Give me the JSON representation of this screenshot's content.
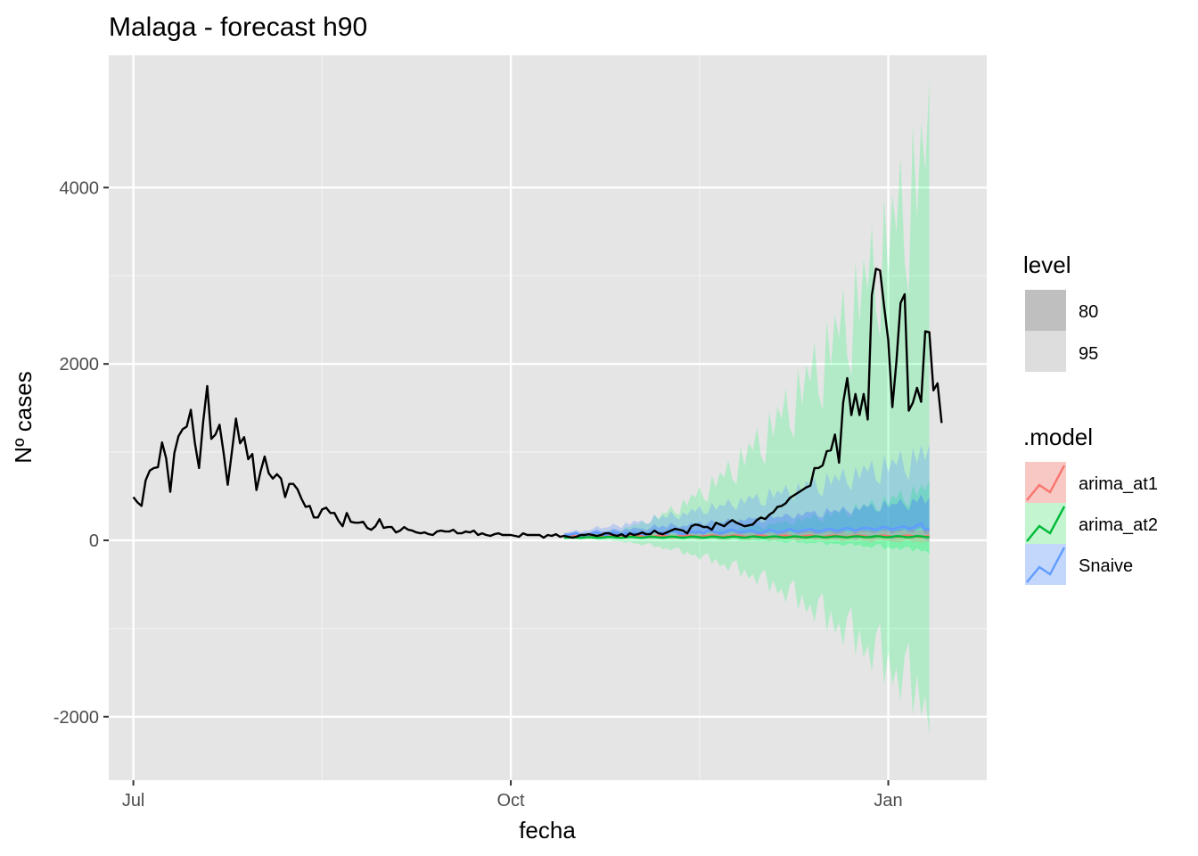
{
  "chart_data": {
    "type": "line",
    "title": "Malaga - forecast h90",
    "xlabel": "fecha",
    "ylabel": "Nº cases",
    "x_ticks": [
      "Jul",
      "Oct",
      "Jan"
    ],
    "x_tick_dates": [
      "2020-07-01",
      "2020-10-01",
      "2021-01-01"
    ],
    "x_range": [
      "2020-06-25",
      "2021-01-25"
    ],
    "y_ticks": [
      -2000,
      0,
      2000,
      4000
    ],
    "ylim": [
      -2720,
      5500
    ],
    "grid": true,
    "legend_position": "right",
    "legend": {
      "level": {
        "title": "level",
        "items": [
          "80",
          "95"
        ]
      },
      "model": {
        "title": ".model",
        "items": [
          "arima_at1",
          "arima_at2",
          "Snaive"
        ]
      }
    },
    "colors": {
      "panel": "#e5e5e5",
      "actual": "#000000",
      "arima_at1": "#f8766d",
      "arima_at2": "#00ba38",
      "Snaive": "#619cff"
    },
    "actual": {
      "start_date": "2020-07-01",
      "values": [
        490,
        430,
        390,
        680,
        790,
        820,
        830,
        1110,
        930,
        550,
        990,
        1180,
        1260,
        1290,
        1480,
        1100,
        820,
        1340,
        1750,
        1150,
        1200,
        1310,
        990,
        630,
        1000,
        1380,
        1100,
        1170,
        920,
        980,
        570,
        780,
        950,
        760,
        700,
        750,
        700,
        490,
        640,
        640,
        580,
        470,
        380,
        390,
        260,
        260,
        350,
        370,
        310,
        310,
        220,
        160,
        310,
        210,
        200,
        200,
        210,
        140,
        120,
        160,
        240,
        140,
        150,
        150,
        90,
        110,
        150,
        120,
        110,
        90,
        80,
        90,
        70,
        60,
        100,
        110,
        100,
        100,
        120,
        80,
        80,
        100,
        90,
        110,
        60,
        80,
        60,
        50,
        70,
        80,
        60,
        60,
        60,
        50,
        40,
        80,
        60,
        60,
        60,
        60,
        30,
        60,
        50,
        70,
        40,
        50,
        40,
        30,
        40,
        60,
        60,
        70,
        60,
        50,
        60,
        80,
        80,
        60,
        50,
        70,
        40,
        80,
        60,
        70,
        90,
        70,
        70,
        110,
        80,
        70,
        90,
        110,
        130,
        120,
        110,
        80,
        160,
        180,
        170,
        150,
        150,
        120,
        200,
        180,
        160,
        200,
        230,
        200,
        180,
        160,
        170,
        180,
        230,
        260,
        240,
        290,
        320,
        380,
        390,
        420,
        480,
        510,
        540,
        570,
        600,
        620,
        820,
        820,
        850,
        1010,
        1020,
        1200,
        880,
        1560,
        1840,
        1420,
        1660,
        1420,
        1660,
        1370,
        2780,
        3080,
        3060,
        2650,
        2270,
        1510,
        2030,
        2690,
        2790,
        1470,
        1560,
        1730,
        1570,
        2370,
        2360,
        1700,
        1780,
        1330
      ]
    },
    "forecast": {
      "start_date": "2020-10-14",
      "horizon": 90,
      "arima_at1": {
        "mean": [
          30,
          42,
          50,
          46,
          40,
          42,
          48,
          53,
          46,
          39,
          44,
          49,
          54,
          50,
          44,
          40,
          46,
          52,
          56,
          49,
          42,
          38,
          45,
          51,
          55,
          48,
          41,
          39,
          45,
          52,
          56,
          49,
          43,
          40,
          45,
          51,
          56,
          49,
          42,
          39,
          45,
          52,
          55,
          48,
          42,
          40,
          46,
          52,
          55,
          48,
          41,
          38,
          45,
          51,
          55,
          48,
          41,
          39,
          45,
          51,
          56,
          48,
          42,
          39,
          45,
          51,
          55,
          48,
          42,
          39,
          46,
          52,
          55,
          48,
          42,
          38,
          45,
          51,
          55,
          48,
          42,
          39,
          45,
          51,
          55,
          48,
          42,
          39,
          45,
          51
        ],
        "lo80_at_end": -60,
        "hi80_at_end": 130
      },
      "arima_at2": {
        "mean": [
          30,
          32,
          35,
          31,
          28,
          33,
          37,
          34,
          30,
          29,
          35,
          39,
          36,
          31,
          29,
          34,
          40,
          37,
          32,
          29,
          35,
          41,
          38,
          33,
          30,
          35,
          42,
          39,
          33,
          30,
          36,
          42,
          40,
          34,
          31,
          36,
          43,
          40,
          34,
          31,
          37,
          43,
          41,
          35,
          31,
          37,
          44,
          41,
          35,
          32,
          38,
          44,
          42,
          36,
          32,
          38,
          45,
          42,
          36,
          33,
          38,
          45,
          43,
          36,
          33,
          39,
          46,
          43,
          37,
          33,
          39,
          46,
          44,
          37,
          34,
          40,
          47,
          44,
          37,
          34,
          40,
          47,
          45,
          38,
          34,
          40,
          48,
          45,
          38,
          35
        ],
        "lo95_at_end": -2200,
        "hi95_at_end": 5200
      },
      "Snaive": {
        "mean": [
          60,
          60,
          70,
          80,
          50,
          60,
          60,
          80,
          90,
          70,
          60,
          70,
          90,
          80,
          60,
          80,
          70,
          90,
          80,
          70,
          60,
          90,
          110,
          80,
          90,
          70,
          110,
          100,
          80,
          70,
          80,
          100,
          90,
          100,
          80,
          110,
          110,
          90,
          80,
          90,
          110,
          120,
          100,
          90,
          100,
          110,
          110,
          90,
          80,
          100,
          120,
          110,
          90,
          100,
          110,
          130,
          110,
          100,
          110,
          120,
          130,
          110,
          100,
          110,
          130,
          130,
          110,
          110,
          130,
          140,
          130,
          110,
          130,
          140,
          140,
          130,
          120,
          140,
          150,
          140,
          120,
          140,
          150,
          160,
          130,
          140,
          170,
          190,
          120,
          130
        ],
        "lo95_at_end": -60,
        "hi95_at_end": 1000
      }
    }
  }
}
